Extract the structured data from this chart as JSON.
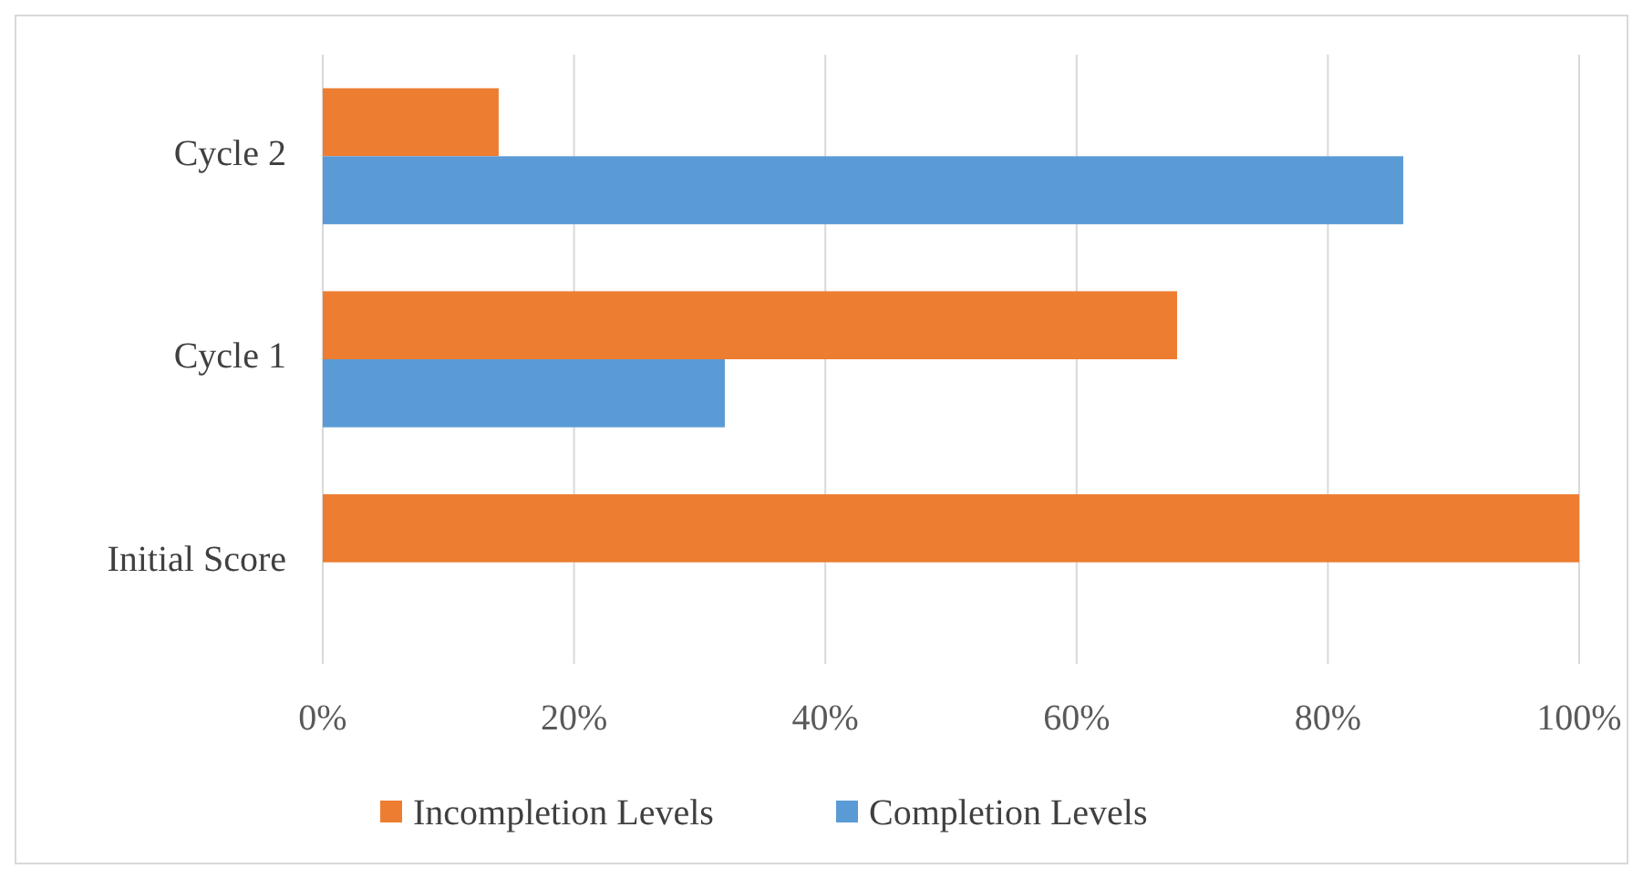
{
  "chart_data": {
    "type": "bar",
    "orientation": "horizontal",
    "categories": [
      "Cycle 2",
      "Cycle 1",
      "Initial Score"
    ],
    "series": [
      {
        "name": "Incompletion Levels",
        "color": "#ed7d31",
        "values": [
          14,
          68,
          100
        ]
      },
      {
        "name": "Completion Levels",
        "color": "#5b9bd5",
        "values": [
          86,
          32,
          0
        ]
      }
    ],
    "xlim": [
      0,
      100
    ],
    "xticks": [
      {
        "value": 0,
        "label": "0%"
      },
      {
        "value": 20,
        "label": "20%"
      },
      {
        "value": 40,
        "label": "40%"
      },
      {
        "value": 60,
        "label": "60%"
      },
      {
        "value": 80,
        "label": "80%"
      },
      {
        "value": 100,
        "label": "100%"
      }
    ],
    "grid": "x",
    "legend": "bottom"
  }
}
